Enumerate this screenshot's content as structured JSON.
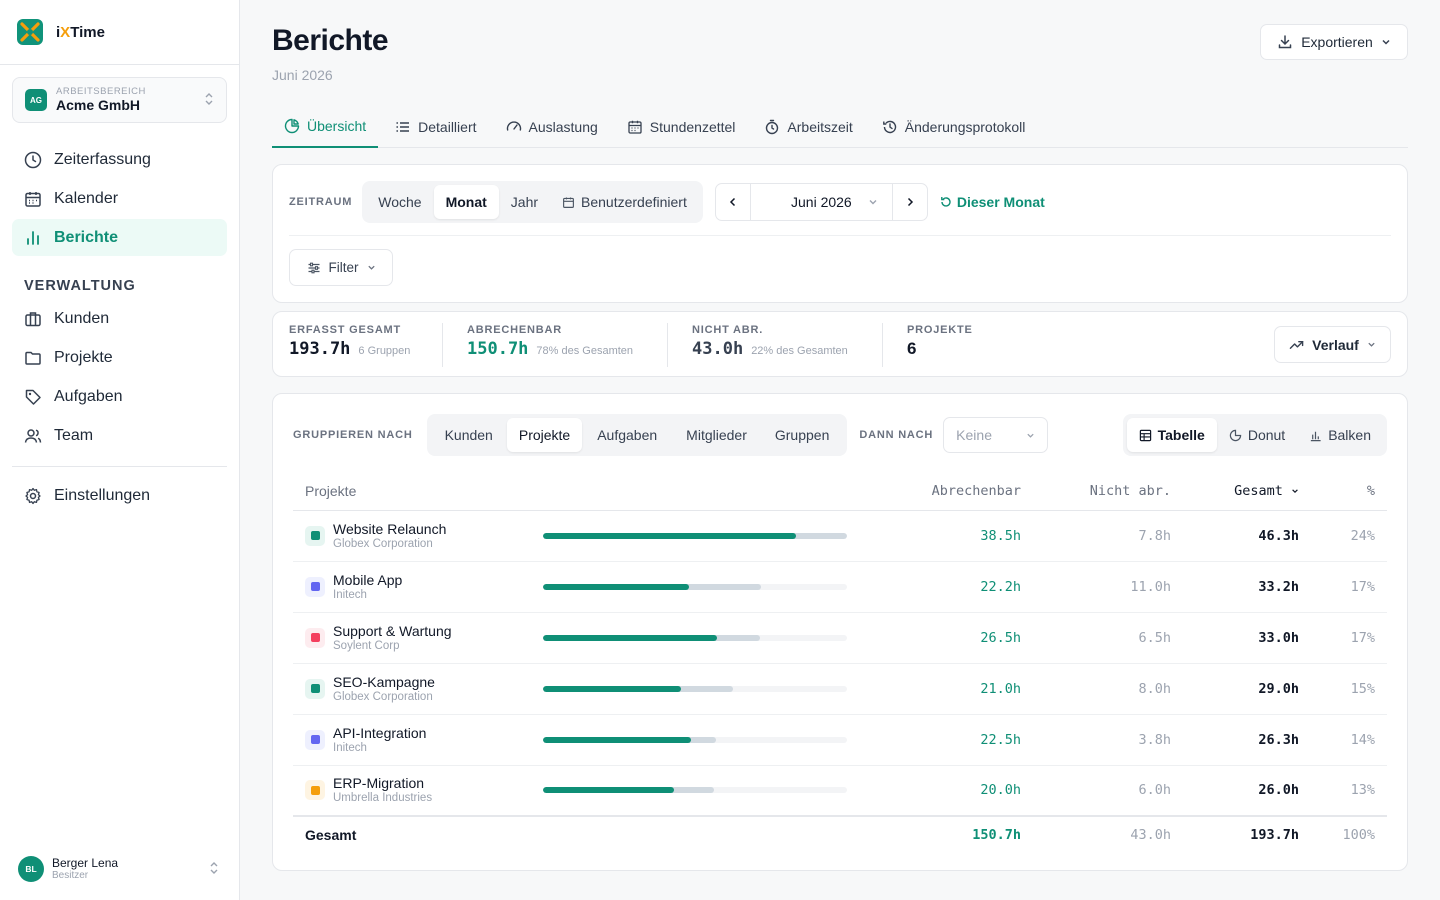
{
  "app": {
    "brand_prefix": "i",
    "brand_x": "X",
    "brand_suffix": "Time"
  },
  "workspace": {
    "label": "ARBEITSBEREICH",
    "name": "Acme GmbH",
    "badge": "AG"
  },
  "nav": {
    "items": [
      {
        "label": "Zeiterfassung",
        "icon": "clock-icon"
      },
      {
        "label": "Kalender",
        "icon": "calendar-icon"
      },
      {
        "label": "Berichte",
        "icon": "bar-chart-icon",
        "active": true
      }
    ],
    "section_label": "VERWALTUNG",
    "admin_items": [
      {
        "label": "Kunden",
        "icon": "briefcase-icon"
      },
      {
        "label": "Projekte",
        "icon": "folder-icon"
      },
      {
        "label": "Aufgaben",
        "icon": "tag-icon"
      },
      {
        "label": "Team",
        "icon": "users-icon"
      }
    ],
    "settings_label": "Einstellungen"
  },
  "user": {
    "initials": "BL",
    "name": "Berger Lena",
    "role": "Besitzer"
  },
  "header": {
    "title": "Berichte",
    "subtitle": "Juni 2026",
    "export_label": "Exportieren"
  },
  "tabs": [
    {
      "label": "Übersicht",
      "active": true
    },
    {
      "label": "Detailliert"
    },
    {
      "label": "Auslastung"
    },
    {
      "label": "Stundenzettel"
    },
    {
      "label": "Arbeitszeit"
    },
    {
      "label": "Änderungsprotokoll"
    }
  ],
  "range": {
    "label": "ZEITRAUM",
    "options": [
      "Woche",
      "Monat",
      "Jahr",
      "Benutzerdefiniert"
    ],
    "selected": "Monat",
    "period": "Juni 2026",
    "this_month": "Dieser Monat",
    "filter_label": "Filter"
  },
  "stats": {
    "total": {
      "label": "ERFASST GESAMT",
      "value": "193.7h",
      "sub": "6 Gruppen"
    },
    "billable": {
      "label": "ABRECHENBAR",
      "value": "150.7h",
      "sub": "78% des Gesamten"
    },
    "nonbillable": {
      "label": "NICHT ABR.",
      "value": "43.0h",
      "sub": "22% des Gesamten"
    },
    "projects": {
      "label": "PROJEKTE",
      "value": "6"
    },
    "trend_label": "Verlauf"
  },
  "grouping": {
    "label": "GRUPPIEREN NACH",
    "options": [
      "Kunden",
      "Projekte",
      "Aufgaben",
      "Mitglieder",
      "Gruppen"
    ],
    "selected": "Projekte",
    "then_label": "DANN NACH",
    "then_value": "Keine",
    "views": [
      "Tabelle",
      "Donut",
      "Balken"
    ],
    "view_selected": "Tabelle"
  },
  "table": {
    "headers": {
      "project": "Projekte",
      "billable": "Abrechenbar",
      "nonbillable": "Nicht abr.",
      "total": "Gesamt",
      "pct": "%"
    },
    "rows": [
      {
        "name": "Website Relaunch",
        "client": "Globex Corporation",
        "color": "#0f8f76",
        "bg": "#e6f5f1",
        "billable": "38.5h",
        "nonbillable": "7.8h",
        "total": "46.3h",
        "pct": "24%",
        "bill_frac": 0.831,
        "total_frac": 1.0
      },
      {
        "name": "Mobile App",
        "client": "Initech",
        "color": "#6366f1",
        "bg": "#eef0fe",
        "billable": "22.2h",
        "nonbillable": "11.0h",
        "total": "33.2h",
        "pct": "17%",
        "bill_frac": 0.479,
        "total_frac": 0.717
      },
      {
        "name": "Support & Wartung",
        "client": "Soylent Corp",
        "color": "#f43f5e",
        "bg": "#fdecef",
        "billable": "26.5h",
        "nonbillable": "6.5h",
        "total": "33.0h",
        "pct": "17%",
        "bill_frac": 0.572,
        "total_frac": 0.713
      },
      {
        "name": "SEO-Kampagne",
        "client": "Globex Corporation",
        "color": "#0f8f76",
        "bg": "#e6f5f1",
        "billable": "21.0h",
        "nonbillable": "8.0h",
        "total": "29.0h",
        "pct": "15%",
        "bill_frac": 0.454,
        "total_frac": 0.626
      },
      {
        "name": "API-Integration",
        "client": "Initech",
        "color": "#6366f1",
        "bg": "#eef0fe",
        "billable": "22.5h",
        "nonbillable": "3.8h",
        "total": "26.3h",
        "pct": "14%",
        "bill_frac": 0.486,
        "total_frac": 0.568
      },
      {
        "name": "ERP-Migration",
        "client": "Umbrella Industries",
        "color": "#f59e0b",
        "bg": "#fef4e2",
        "billable": "20.0h",
        "nonbillable": "6.0h",
        "total": "26.0h",
        "pct": "13%",
        "bill_frac": 0.432,
        "total_frac": 0.562
      }
    ],
    "footer": {
      "label": "Gesamt",
      "billable": "150.7h",
      "nonbillable": "43.0h",
      "total": "193.7h",
      "pct": "100%"
    }
  }
}
